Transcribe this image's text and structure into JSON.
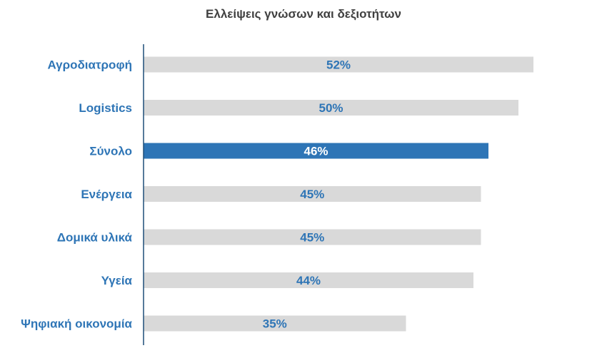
{
  "chart_data": {
    "type": "bar",
    "orientation": "horizontal",
    "title": "Ελλείψεις γνώσων και δεξιοτήτων",
    "categories": [
      "Αγροδιατροφή",
      "Logistics",
      "Σύνολο",
      "Ενέργεια",
      "Δομικά υλικά",
      "Υγεία",
      "Ψηφιακή οικονομία"
    ],
    "values": [
      52,
      50,
      46,
      45,
      45,
      44,
      35
    ],
    "value_labels": [
      "52%",
      "50%",
      "46%",
      "45%",
      "45%",
      "44%",
      "35%"
    ],
    "highlight_index": 2,
    "xlabel": "",
    "ylabel": "",
    "xlim": [
      0,
      60
    ],
    "grid": false,
    "legend": "none",
    "colors": {
      "bar": "#d9d9d9",
      "highlight_bar": "#2e75b6",
      "label_text": "#2e75b6",
      "highlight_value_text": "#ffffff",
      "axis": "#1f4e79",
      "title_text": "#404040"
    }
  }
}
